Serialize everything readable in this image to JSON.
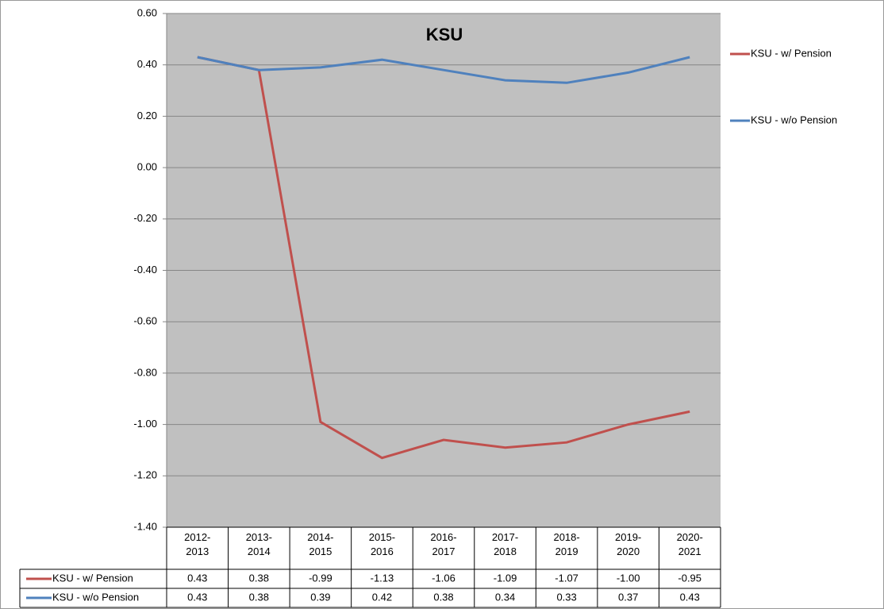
{
  "chart_data": {
    "type": "line",
    "title": "KSU",
    "categories": [
      "2012-2013",
      "2013-2014",
      "2014-2015",
      "2015-2016",
      "2016-2017",
      "2017-2018",
      "2018-2019",
      "2019-2020",
      "2020-2021"
    ],
    "series": [
      {
        "name": "KSU -  w/ Pension",
        "color": "#c0504d",
        "values": [
          0.43,
          0.38,
          -0.99,
          -1.13,
          -1.06,
          -1.09,
          -1.07,
          -1.0,
          -0.95
        ],
        "value_labels": [
          "0.43",
          "0.38",
          "-0.99",
          "-1.13",
          "-1.06",
          "-1.09",
          "-1.07",
          "-1.00",
          "-0.95"
        ]
      },
      {
        "name": "KSU - w/o Pension",
        "color": "#4f81bd",
        "values": [
          0.43,
          0.38,
          0.39,
          0.42,
          0.38,
          0.34,
          0.33,
          0.37,
          0.43
        ],
        "value_labels": [
          "0.43",
          "0.38",
          "0.39",
          "0.42",
          "0.38",
          "0.34",
          "0.33",
          "0.37",
          "0.43"
        ]
      }
    ],
    "ylim": [
      -1.4,
      0.6
    ],
    "yticks": [
      {
        "value": 0.6,
        "label": "0.60"
      },
      {
        "value": 0.4,
        "label": "0.40"
      },
      {
        "value": 0.2,
        "label": "0.20"
      },
      {
        "value": 0,
        "label": "0.00"
      },
      {
        "value": -0.2,
        "label": "-0.20"
      },
      {
        "value": -0.4,
        "label": "-0.40"
      },
      {
        "value": -0.6,
        "label": "-0.60"
      },
      {
        "value": -0.8,
        "label": "-0.80"
      },
      {
        "value": -1.0,
        "label": "-1.00"
      },
      {
        "value": -1.2,
        "label": "-1.20"
      },
      {
        "value": -1.4,
        "label": "-1.40"
      }
    ],
    "grid": true,
    "background": "#c0c0c0",
    "legend": "right"
  }
}
